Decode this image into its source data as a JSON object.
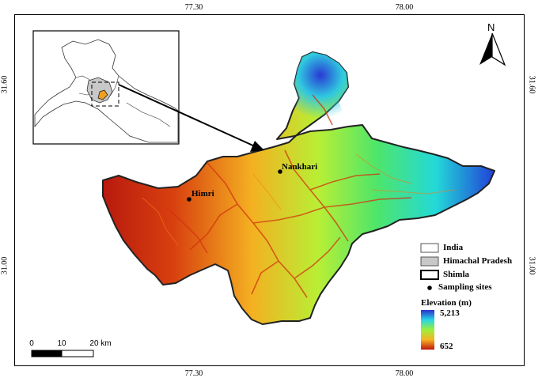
{
  "map": {
    "ticks_top": [
      "77.30",
      "78.00"
    ],
    "ticks_bottom": [
      "77.30",
      "78.00"
    ],
    "ticks_left": [
      "31.60",
      "31.00"
    ],
    "ticks_right": [
      "31.60",
      "31.00"
    ],
    "north_label": "N",
    "places": [
      {
        "name": "Nankhari"
      },
      {
        "name": "Himri"
      }
    ],
    "legend": {
      "india": "India",
      "himachal": "Himachal Pradesh",
      "shimla": "Shimla",
      "sites": "Sampling sites",
      "elevation_title": "Elevation (m)",
      "elev_max": "5,213",
      "elev_min": "652"
    },
    "scale": {
      "labels": [
        "0",
        "10",
        "20 km"
      ]
    },
    "colors": {
      "high": "#2b3bd6",
      "mid_high": "#2ce5d0",
      "mid": "#a8f23a",
      "mid_low": "#f5b324",
      "low": "#c41c10"
    }
  }
}
